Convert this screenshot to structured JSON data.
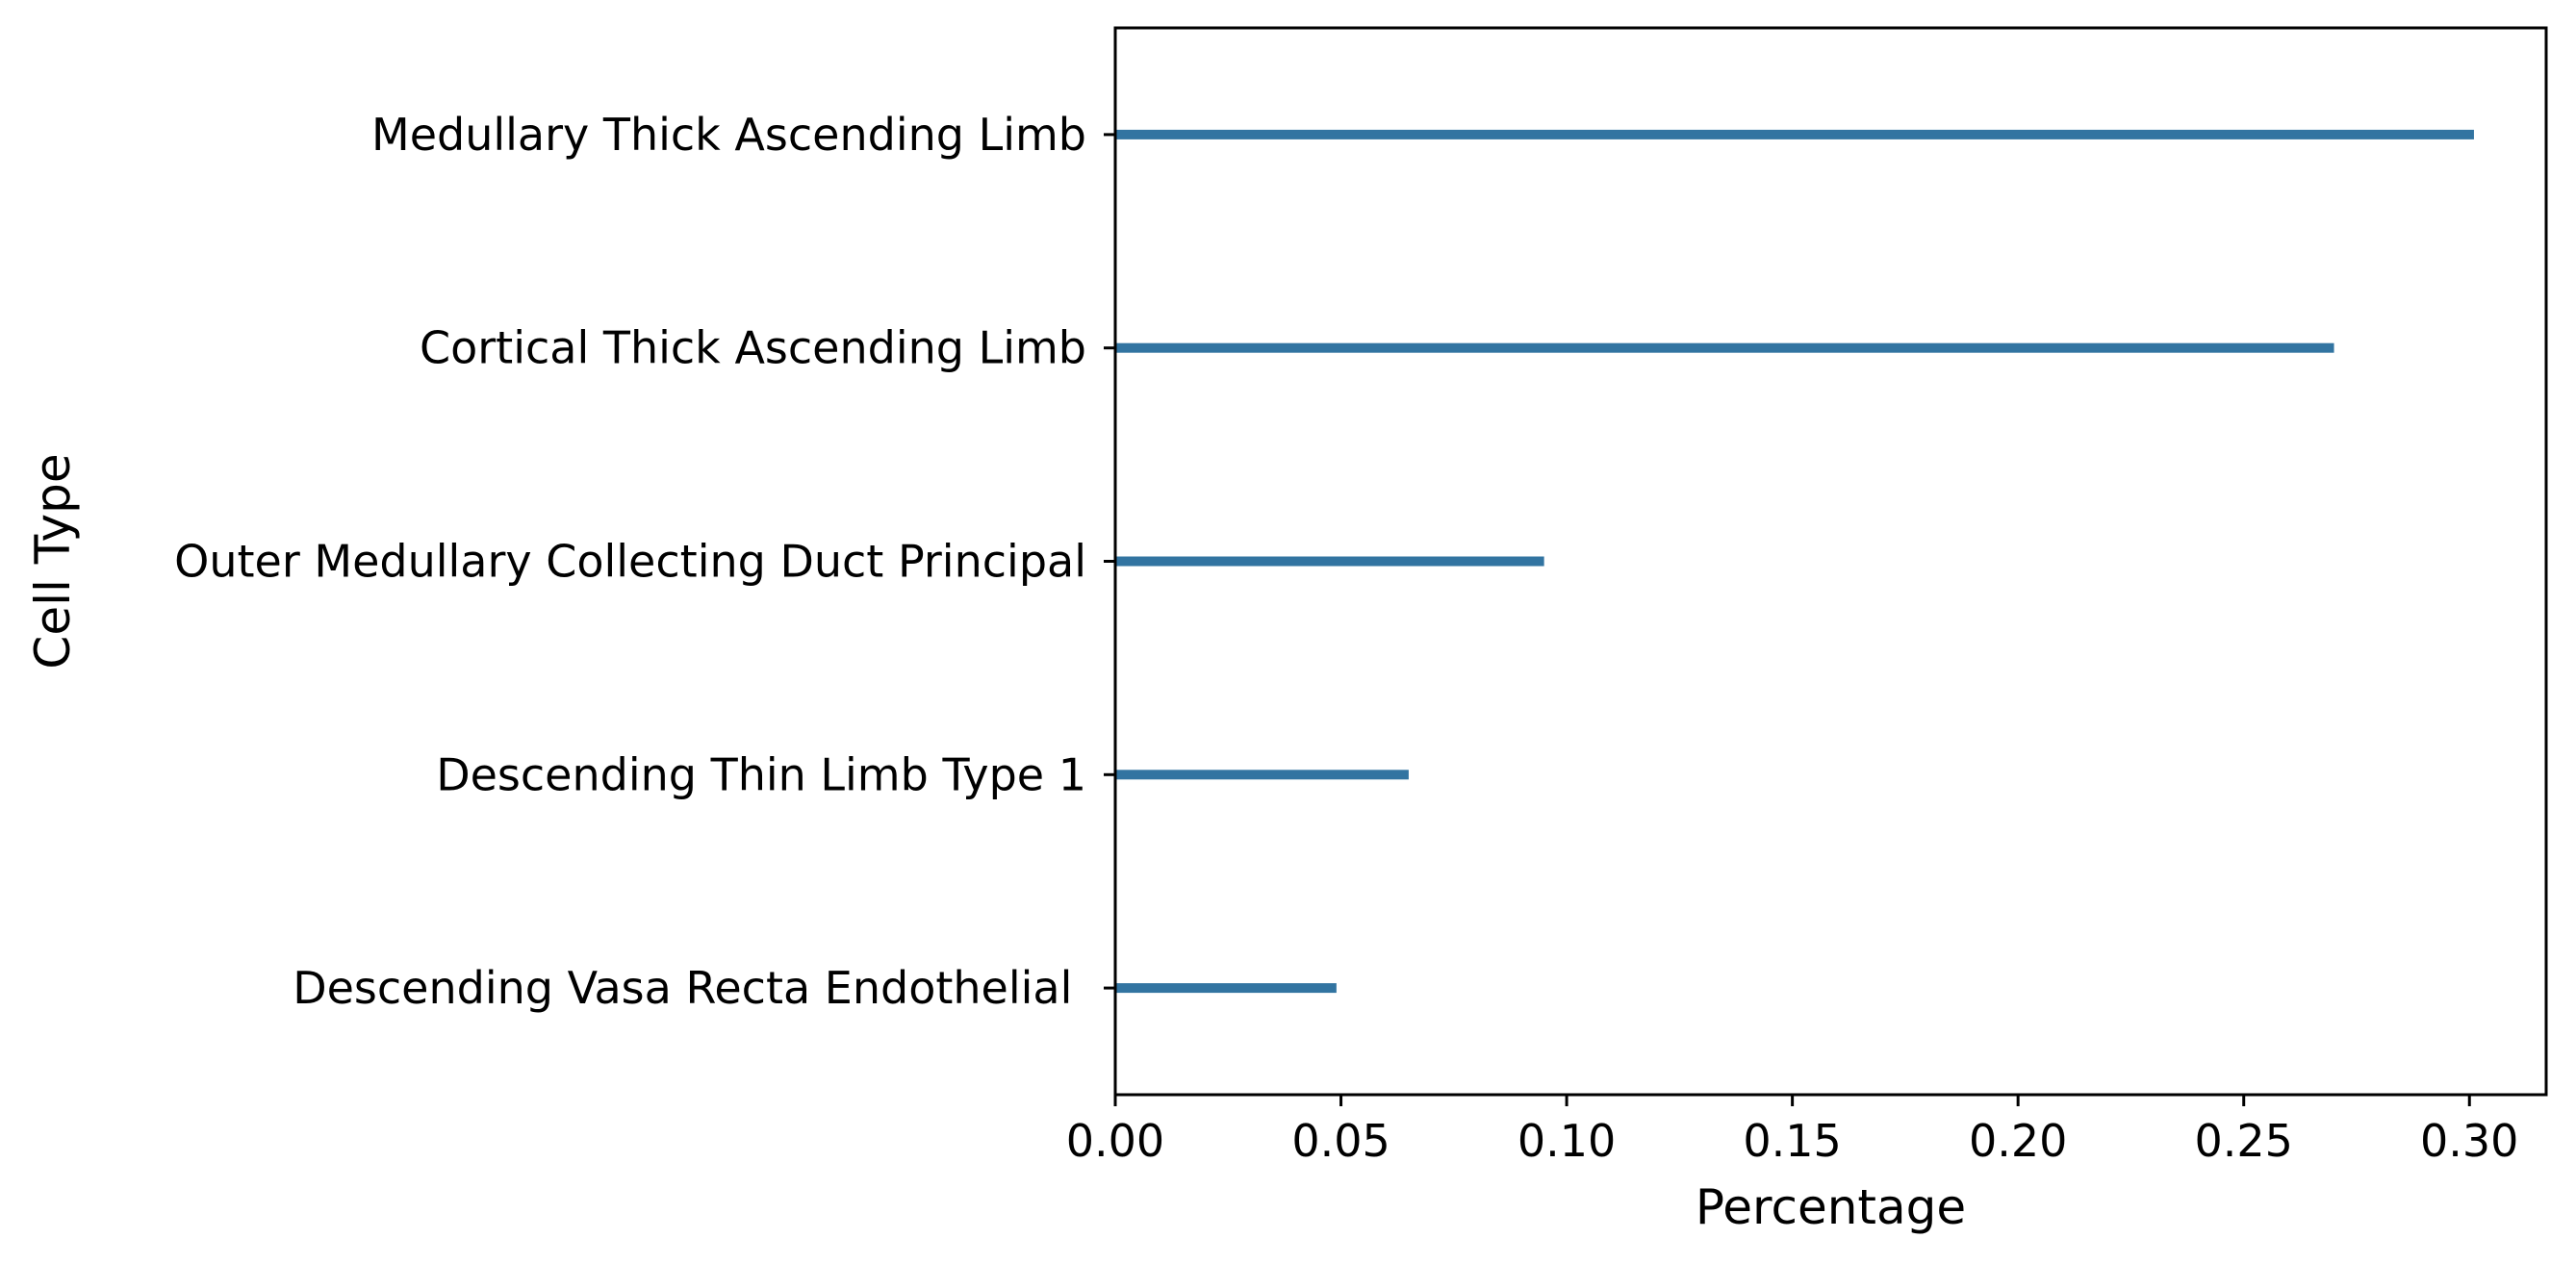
{
  "chart_data": {
    "type": "bar",
    "orientation": "horizontal",
    "title": "",
    "xlabel": "Percentage",
    "ylabel": "Cell Type",
    "categories": [
      "Medullary Thick Ascending Limb",
      "Cortical Thick Ascending Limb",
      "Outer Medullary Collecting Duct Principal",
      "Descending Thin Limb Type 1",
      "Descending Vasa Recta Endothelial "
    ],
    "values": [
      0.301,
      0.27,
      0.095,
      0.065,
      0.049
    ],
    "xlim": [
      0.0,
      0.317
    ],
    "xticks": [
      "0.00",
      "0.05",
      "0.10",
      "0.15",
      "0.20",
      "0.25",
      "0.30"
    ],
    "grid": false,
    "bar_color": "#3274a1"
  }
}
